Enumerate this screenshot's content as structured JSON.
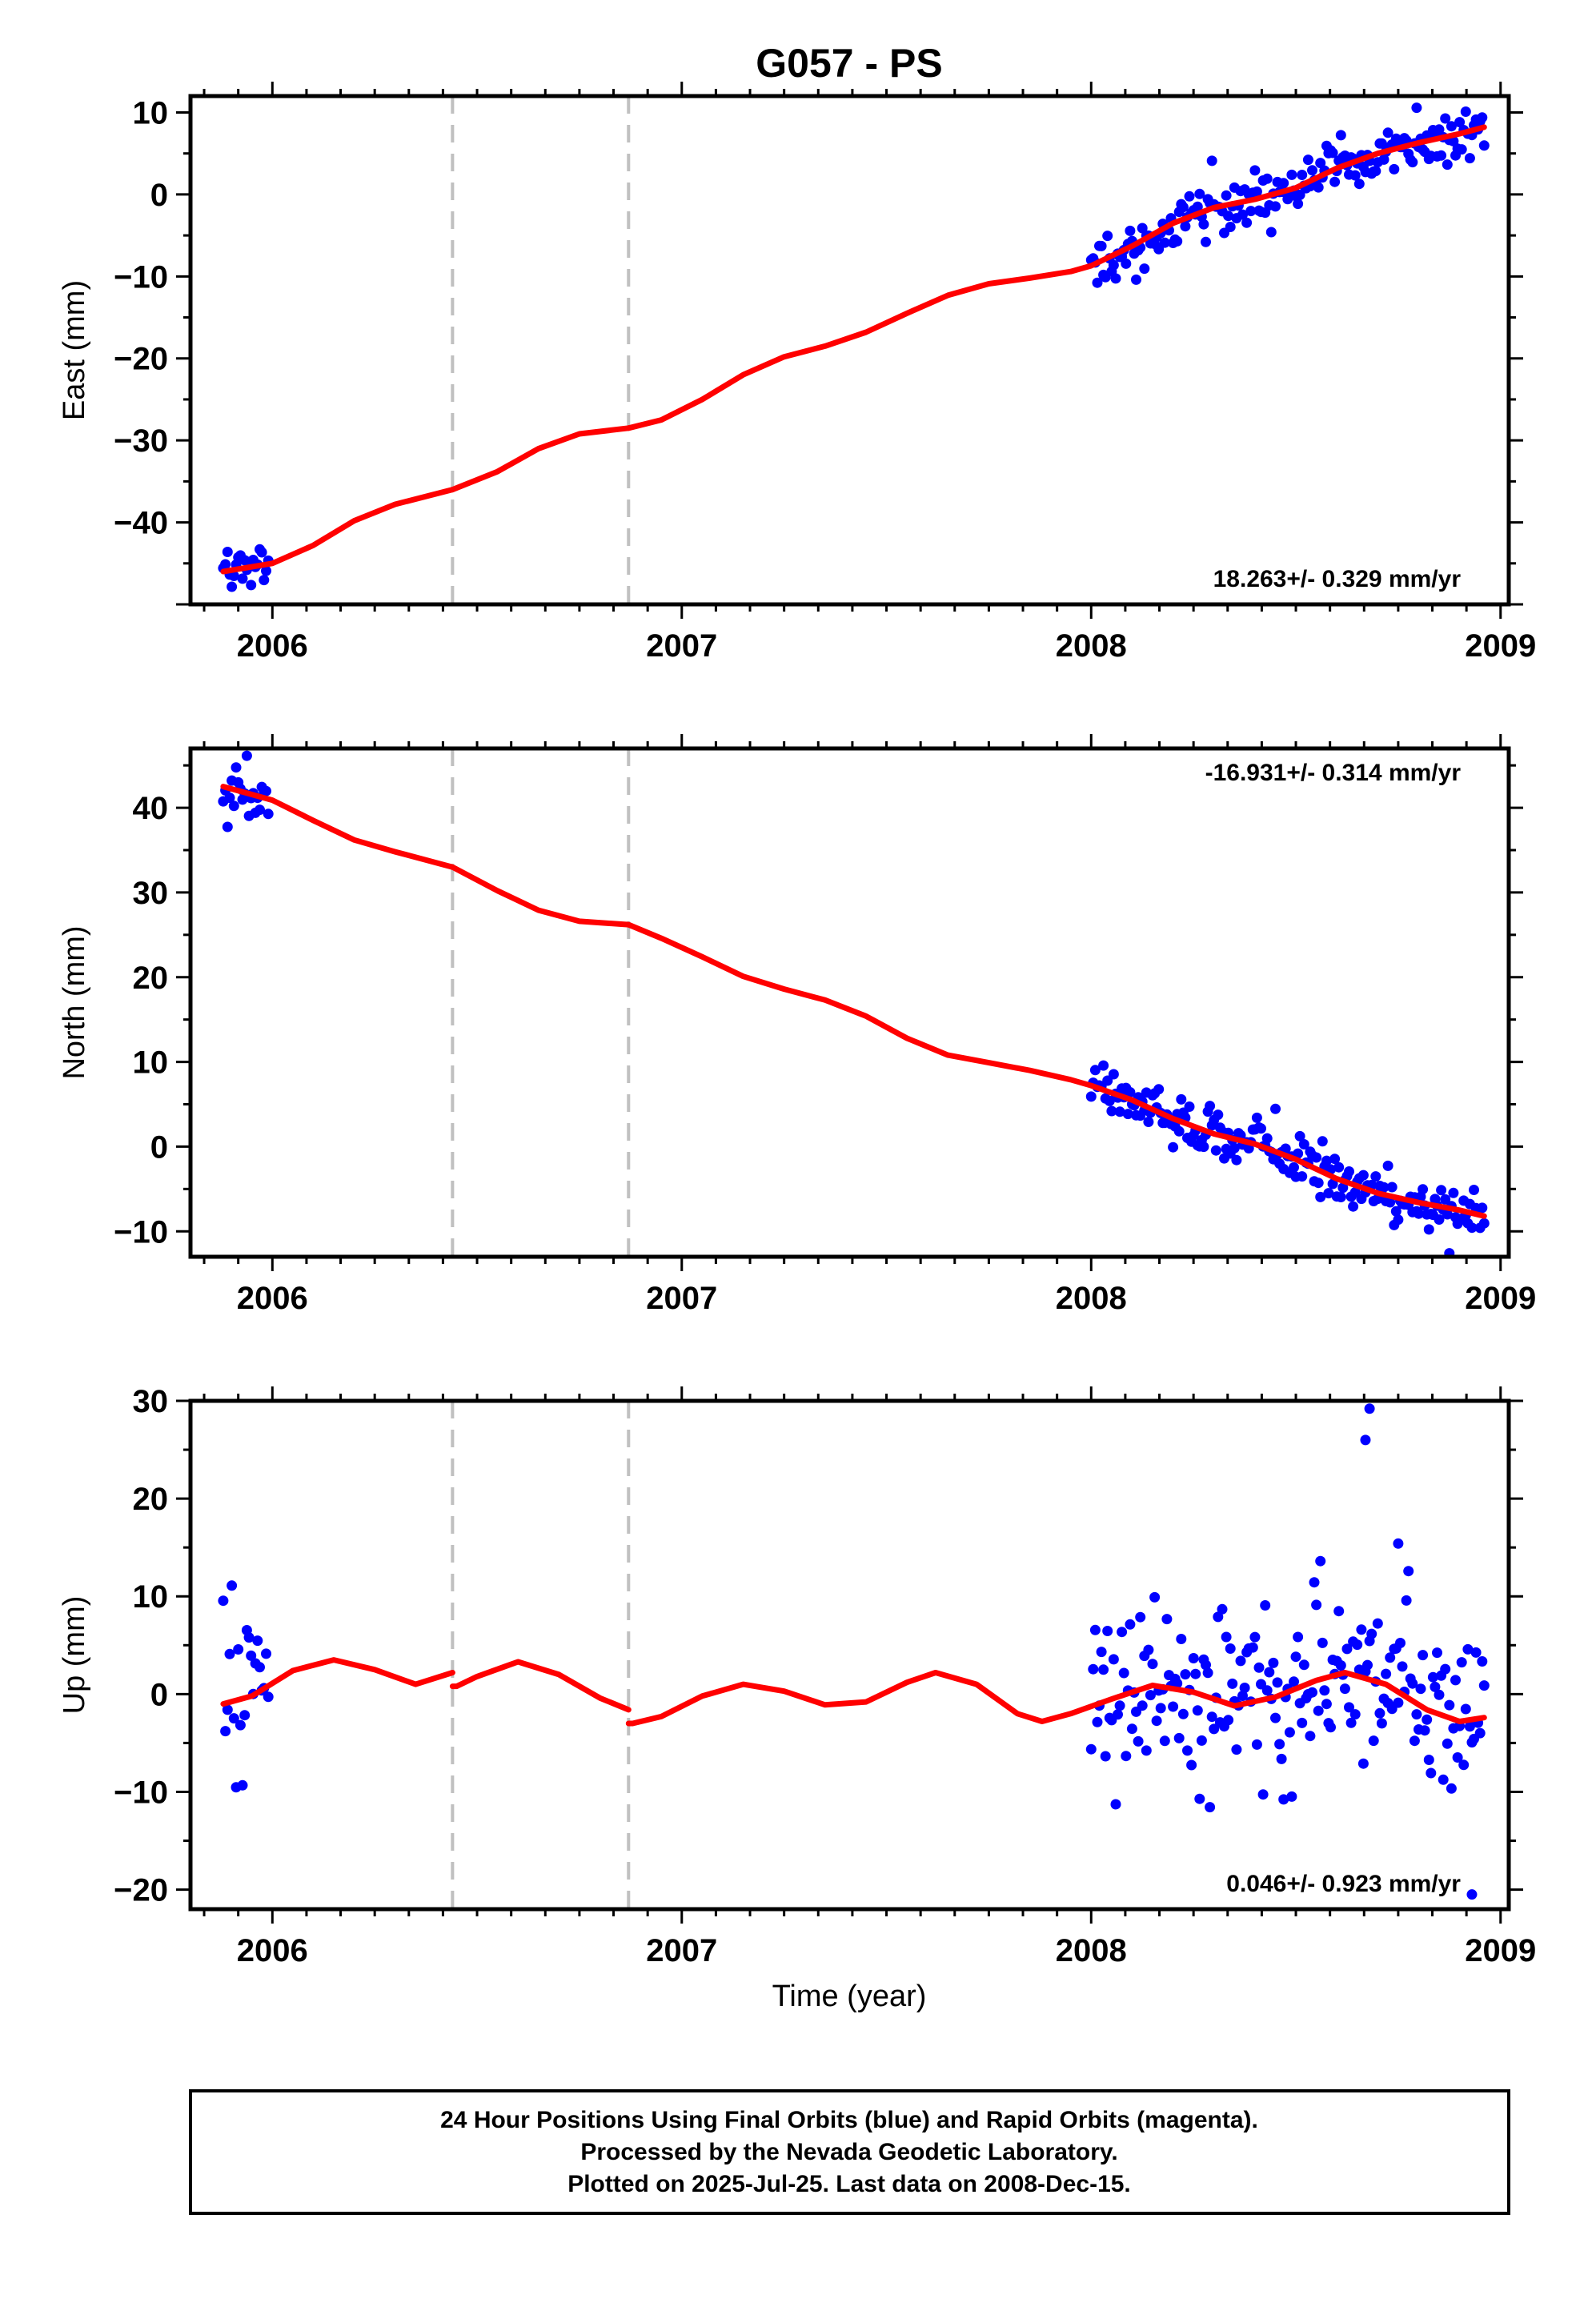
{
  "title": "G057 - PS",
  "colors": {
    "data": "#0000ff",
    "model": "#ff0000",
    "break": "#c0c0c0",
    "frame": "#000000"
  },
  "chart_data": [
    {
      "type": "scatter",
      "panel": "east",
      "ylabel": "East (mm)",
      "xlim": [
        2005.8,
        2009.02
      ],
      "ylim": [
        -50,
        12
      ],
      "xticks": [
        2006,
        2007,
        2008,
        2009
      ],
      "yticks": [
        -40,
        -30,
        -20,
        -10,
        0,
        10
      ],
      "rate_text": "18.263+/- 0.329 mm/yr",
      "rate_position": "bottom-right",
      "breaks": [
        2006.44,
        2006.87
      ],
      "model": {
        "x": [
          2005.88,
          2006.0,
          2006.1,
          2006.2,
          2006.3,
          2006.44,
          2006.55,
          2006.65,
          2006.75,
          2006.87,
          2006.95,
          2007.05,
          2007.15,
          2007.25,
          2007.35,
          2007.45,
          2007.55,
          2007.65,
          2007.75,
          2007.85,
          2007.95,
          2008.0,
          2008.1,
          2008.2,
          2008.3,
          2008.4,
          2008.5,
          2008.6,
          2008.7,
          2008.8,
          2008.9,
          2008.96
        ],
        "y": [
          -46.0,
          -45.0,
          -42.8,
          -39.8,
          -37.8,
          -36.0,
          -33.8,
          -31.0,
          -29.2,
          -28.5,
          -27.5,
          -25.0,
          -22.0,
          -19.8,
          -18.5,
          -16.8,
          -14.5,
          -12.3,
          -10.9,
          -10.2,
          -9.4,
          -8.7,
          -6.3,
          -3.5,
          -1.6,
          -0.6,
          0.8,
          3.2,
          5.0,
          6.3,
          7.4,
          8.2
        ]
      },
      "observations": {
        "segments": [
          [
            2005.88,
            2005.99,
            -46.0,
            -44.4
          ],
          [
            2008.0,
            2008.96,
            -8.7,
            8.2
          ]
        ],
        "scatter_sd": 1.6
      }
    },
    {
      "type": "scatter",
      "panel": "north",
      "ylabel": "North (mm)",
      "xlim": [
        2005.8,
        2009.02
      ],
      "ylim": [
        -13,
        47
      ],
      "xticks": [
        2006,
        2007,
        2008,
        2009
      ],
      "yticks": [
        -10,
        0,
        10,
        20,
        30,
        40
      ],
      "rate_text": "-16.931+/- 0.314 mm/yr",
      "rate_position": "top-right",
      "breaks": [
        2006.44,
        2006.87
      ],
      "model": {
        "x": [
          2005.88,
          2006.0,
          2006.1,
          2006.2,
          2006.3,
          2006.44,
          2006.55,
          2006.65,
          2006.75,
          2006.87,
          2006.95,
          2007.05,
          2007.15,
          2007.25,
          2007.35,
          2007.45,
          2007.55,
          2007.65,
          2007.75,
          2007.85,
          2007.95,
          2008.0,
          2008.1,
          2008.2,
          2008.3,
          2008.4,
          2008.5,
          2008.6,
          2008.7,
          2008.8,
          2008.9,
          2008.96
        ],
        "y": [
          42.5,
          40.9,
          38.5,
          36.2,
          34.8,
          33.0,
          30.2,
          27.9,
          26.6,
          26.2,
          24.6,
          22.4,
          20.1,
          18.6,
          17.3,
          15.4,
          12.8,
          10.8,
          9.9,
          9.0,
          7.9,
          7.2,
          5.5,
          3.3,
          1.5,
          0.3,
          -1.5,
          -3.8,
          -5.5,
          -6.6,
          -7.5,
          -8.2
        ]
      },
      "observations": {
        "segments": [
          [
            2005.88,
            2005.99,
            42.5,
            40.7
          ],
          [
            2008.0,
            2008.96,
            7.2,
            -8.2
          ]
        ],
        "scatter_sd": 1.5
      }
    },
    {
      "type": "scatter",
      "panel": "up",
      "ylabel": "Up (mm)",
      "xlabel": "Time (year)",
      "xlim": [
        2005.8,
        2009.02
      ],
      "ylim": [
        -22,
        30
      ],
      "xticks": [
        2006,
        2007,
        2008,
        2009
      ],
      "yticks": [
        -20,
        -10,
        0,
        10,
        20,
        30
      ],
      "rate_text": "0.046+/- 0.923 mm/yr",
      "rate_position": "bottom-right",
      "breaks": [
        2006.44,
        2006.87
      ],
      "model": {
        "x": [
          2005.88,
          2005.95,
          2006.05,
          2006.15,
          2006.25,
          2006.35,
          2006.44,
          2006.45,
          2006.5,
          2006.6,
          2006.7,
          2006.8,
          2006.87,
          2006.88,
          2006.95,
          2007.05,
          2007.15,
          2007.25,
          2007.35,
          2007.45,
          2007.55,
          2007.62,
          2007.72,
          2007.82,
          2007.88,
          2007.95,
          2008.05,
          2008.15,
          2008.25,
          2008.35,
          2008.45,
          2008.55,
          2008.62,
          2008.72,
          2008.82,
          2008.9,
          2008.96
        ],
        "y": [
          -1.0,
          -0.2,
          2.4,
          3.5,
          2.5,
          1.0,
          2.2,
          0.8,
          1.8,
          3.3,
          2.0,
          -0.4,
          -1.6,
          -3.0,
          -2.3,
          -0.2,
          1.0,
          0.3,
          -1.1,
          -0.8,
          1.2,
          2.2,
          1.0,
          -2.0,
          -2.8,
          -2.0,
          -0.5,
          0.9,
          0.2,
          -1.2,
          -0.3,
          1.4,
          2.2,
          1.0,
          -1.6,
          -2.8,
          -2.4
        ]
      },
      "observations": {
        "segments": [
          [
            2005.88,
            2005.99,
            -1.0,
            1.0
          ],
          [
            2008.0,
            2008.96,
            -1.5,
            -2.4
          ]
        ],
        "scatter_sd": 5.0,
        "outliers": [
          [
            2008.68,
            29.2
          ],
          [
            2008.67,
            26.0
          ],
          [
            2008.75,
            15.4
          ],
          [
            2008.93,
            -20.5
          ]
        ]
      }
    }
  ],
  "footer": {
    "line1": "24 Hour Positions Using Final Orbits (blue) and Rapid Orbits (magenta).",
    "line2": "Processed by the Nevada Geodetic Laboratory.",
    "line3": "Plotted on 2025-Jul-25. Last data on 2008-Dec-15."
  }
}
